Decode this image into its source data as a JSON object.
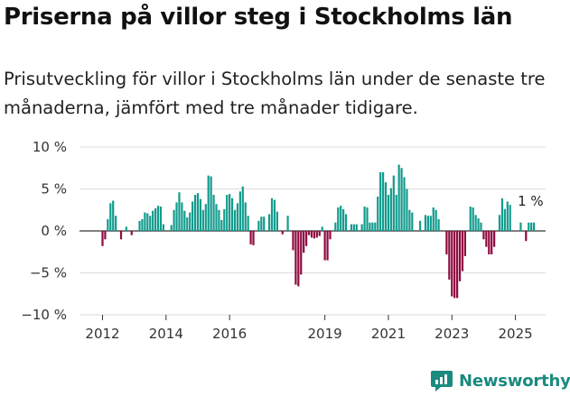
{
  "header": {
    "title": "Priserna på villor steg i Stockholms län",
    "subtitle": "Prisutveckling för villor i Stockholms län under de senaste tre månaderna, jämfört med tre månader tidigare."
  },
  "brand": {
    "name": "Newsworthy"
  },
  "colors": {
    "positive": "#139b8d",
    "negative": "#8e0a3f",
    "axis": "#333333",
    "grid": "#dddddd",
    "brand": "#1b8a7f"
  },
  "chart_data": {
    "type": "bar",
    "title": "Priserna på villor steg i Stockholms län",
    "xlabel": "",
    "ylabel": "",
    "ylim": [
      -10,
      10
    ],
    "yticks": [
      {
        "value": 10,
        "label": "10 %"
      },
      {
        "value": 5,
        "label": "5 %"
      },
      {
        "value": 0,
        "label": "0 %"
      },
      {
        "value": -5,
        "label": "−5 %"
      },
      {
        "value": -10,
        "label": "−10 %"
      }
    ],
    "xticks": [
      {
        "index": 0,
        "label": "2012"
      },
      {
        "index": 24,
        "label": "2014"
      },
      {
        "index": 48,
        "label": "2016"
      },
      {
        "index": 84,
        "label": "2019"
      },
      {
        "index": 108,
        "label": "2021"
      },
      {
        "index": 132,
        "label": "2023"
      },
      {
        "index": 156,
        "label": "2025"
      }
    ],
    "start": "2012-01",
    "series": [
      {
        "name": "Prisutveckling (%)",
        "values": [
          -1.8,
          -1.0,
          1.4,
          3.3,
          3.6,
          1.8,
          0,
          -1.0,
          0,
          0.5,
          0,
          -0.5,
          0,
          0,
          1.2,
          1.4,
          2.2,
          2.1,
          1.8,
          2.4,
          2.7,
          3.0,
          2.9,
          0.8,
          0,
          0,
          0.7,
          2.5,
          3.4,
          4.6,
          3.4,
          2.4,
          1.6,
          2.2,
          3.5,
          4.3,
          4.5,
          3.8,
          2.5,
          3.2,
          6.6,
          6.5,
          4.3,
          3.2,
          2.5,
          1.3,
          2.6,
          4.3,
          4.4,
          3.9,
          2.5,
          3.3,
          4.7,
          5.3,
          3.4,
          1.8,
          -1.6,
          -1.7,
          0,
          1.2,
          1.7,
          1.7,
          0,
          2.0,
          3.9,
          3.7,
          2.3,
          0,
          -0.4,
          0,
          1.8,
          0,
          -2.3,
          -6.4,
          -6.6,
          -5.2,
          -2.6,
          -1.8,
          -0.5,
          -0.8,
          -0.9,
          -0.8,
          -0.6,
          0.5,
          -3.5,
          -3.5,
          -1.0,
          0,
          1.0,
          2.8,
          3.0,
          2.6,
          2.0,
          0,
          0.8,
          0.8,
          0.8,
          0,
          0.8,
          2.9,
          2.8,
          1.0,
          1.0,
          1.0,
          4.1,
          7.0,
          7.0,
          5.8,
          4.3,
          5.1,
          6.6,
          4.3,
          7.9,
          7.5,
          6.4,
          5.0,
          2.5,
          2.2,
          0,
          0,
          1.2,
          0,
          1.9,
          1.8,
          1.8,
          2.8,
          2.5,
          1.4,
          0,
          0,
          -2.8,
          -5.8,
          -7.8,
          -8.0,
          -8.0,
          -6.0,
          -4.8,
          -3.0,
          0,
          2.9,
          2.8,
          1.9,
          1.5,
          1.0,
          -1.0,
          -1.9,
          -2.8,
          -2.8,
          -1.9,
          0,
          1.9,
          3.9,
          2.6,
          3.5,
          3.1,
          0,
          0,
          0,
          1.0,
          0,
          -1.2,
          1.0,
          1.0,
          1.0
        ]
      }
    ],
    "annotations": [
      {
        "index": 159,
        "text": "1 %"
      }
    ]
  }
}
